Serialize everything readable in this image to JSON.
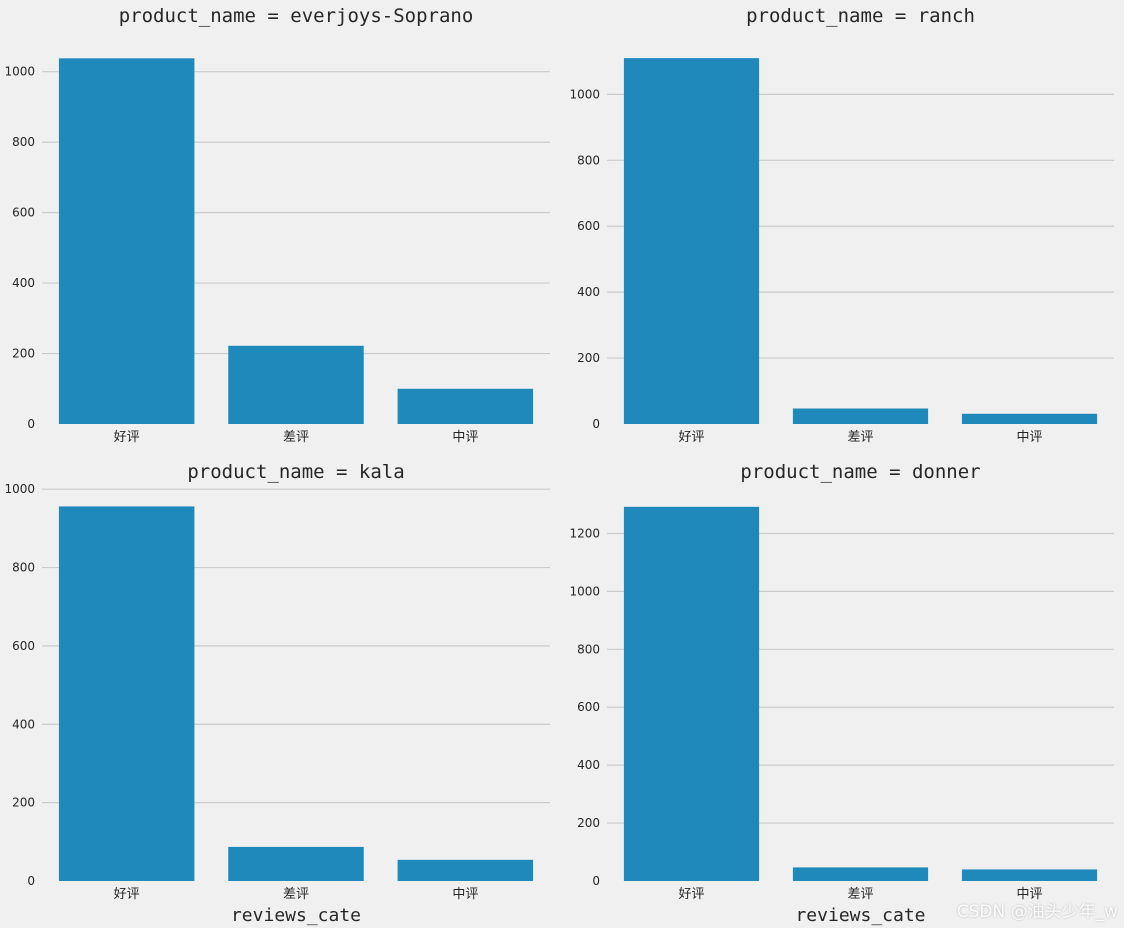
{
  "chart_data": {
    "type": "bar",
    "col_wrap": 2,
    "bar_color": "#1f89bc",
    "grid": true,
    "xlabel": "reviews_cate",
    "panels": [
      {
        "title": "product_name = everjoys-Soprano",
        "categories": [
          "好评",
          "差评",
          "中评"
        ],
        "values": [
          1038,
          222,
          100
        ],
        "ylim": [
          0,
          1090
        ],
        "yticks": [
          0,
          200,
          400,
          600,
          800,
          1000
        ]
      },
      {
        "title": "product_name = ranch",
        "categories": [
          "好评",
          "差评",
          "中评"
        ],
        "values": [
          1110,
          47,
          31
        ],
        "ylim": [
          0,
          1165
        ],
        "yticks": [
          0,
          200,
          400,
          600,
          800,
          1000
        ]
      },
      {
        "title": "product_name = kala",
        "categories": [
          "好评",
          "差评",
          "中评"
        ],
        "values": [
          956,
          87,
          54
        ],
        "ylim": [
          0,
          1003
        ],
        "yticks": [
          0,
          200,
          400,
          600,
          800,
          1000
        ]
      },
      {
        "title": "product_name = donner",
        "categories": [
          "好评",
          "差评",
          "中评"
        ],
        "values": [
          1292,
          47,
          40
        ],
        "ylim": [
          0,
          1357
        ],
        "yticks": [
          0,
          200,
          400,
          600,
          800,
          1000,
          1200
        ]
      }
    ]
  },
  "watermark": "CSDN @油头少年_w"
}
